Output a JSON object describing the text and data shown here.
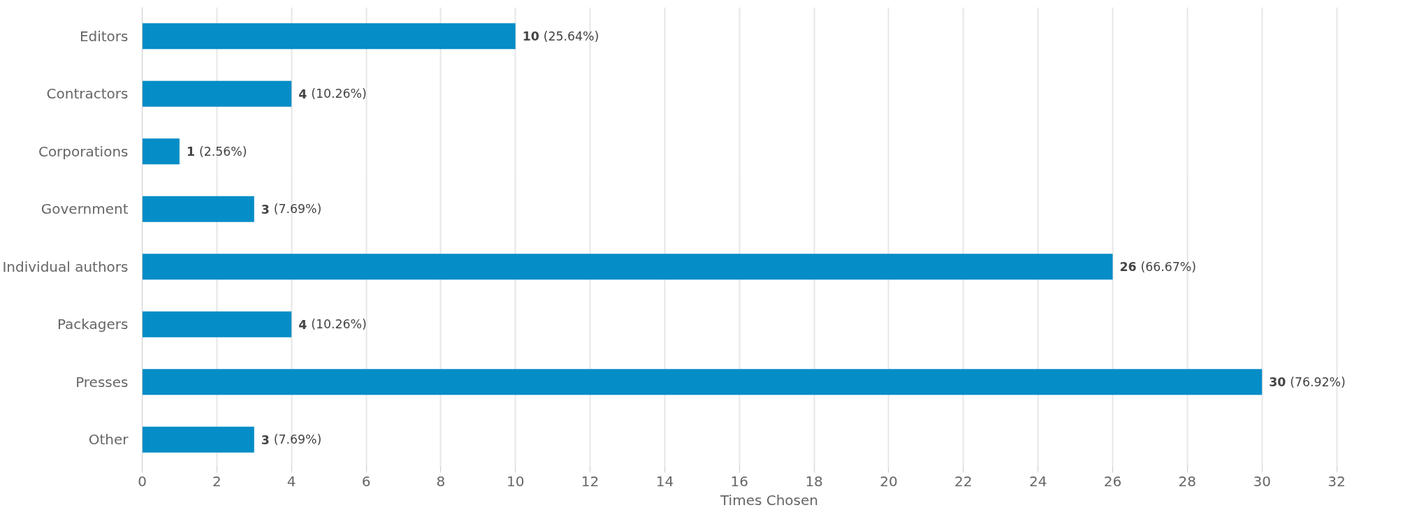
{
  "chart_data": {
    "type": "bar",
    "orientation": "horizontal",
    "xlabel": "Times Chosen",
    "categories": [
      "Editors",
      "Contractors",
      "Corporations",
      "Government",
      "Individual authors",
      "Packagers",
      "Presses",
      "Other"
    ],
    "values": [
      10,
      4,
      1,
      3,
      26,
      4,
      30,
      3
    ],
    "value_labels": [
      "10 (25.64%)",
      "4 (10.26%)",
      "1 (2.56%)",
      "3 (7.69%)",
      "26 (66.67%)",
      "4 (10.26%)",
      "30 (76.92%)",
      "3 (7.69%)"
    ],
    "color": "#058dc7",
    "xlim": [
      0,
      32
    ],
    "xticks": [
      0,
      2,
      4,
      6,
      8,
      10,
      12,
      14,
      16,
      18,
      20,
      22,
      24,
      26,
      28,
      30,
      32
    ],
    "grid": "x"
  }
}
